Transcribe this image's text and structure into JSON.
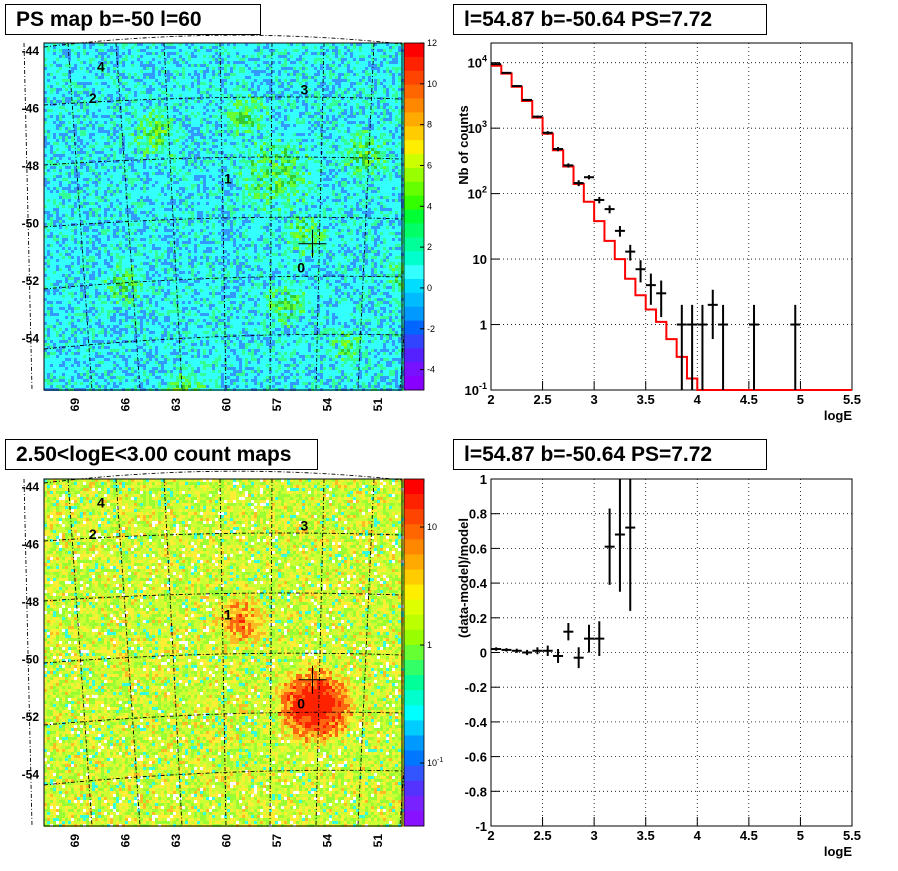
{
  "chart_data": [
    {
      "type": "heatmap",
      "title": "PS map b=-50 l=60",
      "x_ticks": [
        "69",
        "66",
        "63",
        "60",
        "57",
        "54",
        "51"
      ],
      "y_ticks": [
        "-44",
        "-46",
        "-48",
        "-50",
        "-52",
        "-54"
      ],
      "xlim": [
        48.5,
        70.5
      ],
      "ylim": [
        -55.5,
        -43.4
      ],
      "colorbar_ticks": [
        "12",
        "10",
        "8",
        "6",
        "4",
        "2",
        "0",
        "-2",
        "-4"
      ],
      "colorbar_range": [
        -5,
        12
      ],
      "sources": [
        {
          "label": "0",
          "l": 54.7,
          "b": -51.4
        },
        {
          "label": "1",
          "l": 59.2,
          "b": -48.3
        },
        {
          "label": "2",
          "l": 67.5,
          "b": -45.5
        },
        {
          "label": "3",
          "l": 54.5,
          "b": -45.2
        },
        {
          "label": "4",
          "l": 67.0,
          "b": -44.4
        }
      ],
      "marker": {
        "l": 54.0,
        "b": -50.4
      },
      "colors": {
        "background": "#33ffff",
        "hot": "#66cc33"
      }
    },
    {
      "type": "line",
      "title": "l=54.87 b=-50.64 PS=7.72",
      "xlabel": "logE",
      "ylabel": "Nb of counts",
      "y_scale": "log",
      "xlim": [
        2,
        5.5
      ],
      "ylim": [
        0.1,
        20000
      ],
      "x_ticks": [
        "2",
        "2.5",
        "3",
        "3.5",
        "4",
        "4.5",
        "5",
        "5.5"
      ],
      "y_ticks": [
        {
          "value": 0.1,
          "base": "10",
          "exp": "-1"
        },
        {
          "value": 1,
          "label": "1"
        },
        {
          "value": 10,
          "label": "10"
        },
        {
          "value": 100,
          "base": "10",
          "exp": "2"
        },
        {
          "value": 1000,
          "base": "10",
          "exp": "3"
        },
        {
          "value": 10000,
          "base": "10",
          "exp": "4"
        }
      ],
      "grid": true,
      "series": [
        {
          "style": "model-step",
          "color": "#ff0000",
          "bin_edges": [
            2.0,
            2.1,
            2.2,
            2.3,
            2.4,
            2.5,
            2.6,
            2.7,
            2.8,
            2.9,
            3.0,
            3.1,
            3.2,
            3.3,
            3.4,
            3.5,
            3.6,
            3.7,
            3.8,
            3.9,
            4.0,
            4.1,
            4.2,
            4.3,
            4.4,
            4.5,
            4.6,
            4.7,
            4.8,
            4.9,
            5.0,
            5.1,
            5.2,
            5.3,
            5.4,
            5.5
          ],
          "values": [
            9000,
            6800,
            4300,
            2600,
            1450,
            820,
            460,
            260,
            140,
            75,
            38,
            19,
            10,
            5,
            2.8,
            1.7,
            1.1,
            0.6,
            0.32,
            0.15,
            0.1,
            0.1,
            0.1,
            0.1,
            0.1,
            0.1,
            0.1,
            0.1,
            0.1,
            0.1,
            0.1,
            0.1,
            0.1,
            0.1,
            0.1
          ]
        },
        {
          "style": "data-points",
          "color": "#000000",
          "points": [
            {
              "x": 2.05,
              "y": 9500,
              "lo": 9300,
              "hi": 9700
            },
            {
              "x": 2.15,
              "y": 7000,
              "lo": 6850,
              "hi": 7150
            },
            {
              "x": 2.25,
              "y": 4400,
              "lo": 4300,
              "hi": 4500
            },
            {
              "x": 2.35,
              "y": 2700,
              "lo": 2620,
              "hi": 2780
            },
            {
              "x": 2.45,
              "y": 1500,
              "lo": 1440,
              "hi": 1560
            },
            {
              "x": 2.55,
              "y": 850,
              "lo": 800,
              "hi": 900
            },
            {
              "x": 2.65,
              "y": 480,
              "lo": 445,
              "hi": 515
            },
            {
              "x": 2.75,
              "y": 270,
              "lo": 250,
              "hi": 290
            },
            {
              "x": 2.85,
              "y": 145,
              "lo": 130,
              "hi": 160
            },
            {
              "x": 2.95,
              "y": 178,
              "lo": 165,
              "hi": 192
            },
            {
              "x": 3.05,
              "y": 80,
              "lo": 71,
              "hi": 89
            },
            {
              "x": 3.15,
              "y": 58,
              "lo": 50,
              "hi": 66
            },
            {
              "x": 3.25,
              "y": 27,
              "lo": 22,
              "hi": 32
            },
            {
              "x": 3.35,
              "y": 13,
              "lo": 9.5,
              "hi": 16.5
            },
            {
              "x": 3.45,
              "y": 7,
              "lo": 4.4,
              "hi": 9.6
            },
            {
              "x": 3.55,
              "y": 4,
              "lo": 2,
              "hi": 6
            },
            {
              "x": 3.65,
              "y": 3,
              "lo": 1.3,
              "hi": 4.7
            },
            {
              "x": 3.85,
              "y": 1,
              "lo": 0.1,
              "hi": 2
            },
            {
              "x": 3.95,
              "y": 1,
              "lo": 0.1,
              "hi": 2
            },
            {
              "x": 4.05,
              "y": 1,
              "lo": 0.1,
              "hi": 2
            },
            {
              "x": 4.15,
              "y": 2,
              "lo": 0.6,
              "hi": 3.4
            },
            {
              "x": 4.25,
              "y": 1,
              "lo": 0.1,
              "hi": 2
            },
            {
              "x": 4.55,
              "y": 1,
              "lo": 0.1,
              "hi": 2
            },
            {
              "x": 4.95,
              "y": 1,
              "lo": 0.1,
              "hi": 2
            }
          ]
        }
      ]
    },
    {
      "type": "heatmap",
      "title": "2.50<logE<3.00 count maps",
      "x_ticks": [
        "69",
        "66",
        "63",
        "60",
        "57",
        "54",
        "51"
      ],
      "y_ticks": [
        "-44",
        "-46",
        "-48",
        "-50",
        "-52",
        "-54"
      ],
      "colorbar_ticks": [
        {
          "base": "10",
          "label": "10"
        },
        {
          "label": "1"
        },
        {
          "base": "10",
          "exp": "-1"
        }
      ],
      "colorbar_scale": "log",
      "sources": [
        {
          "label": "0",
          "l": 54.7,
          "b": -51.4
        },
        {
          "label": "1",
          "l": 59.2,
          "b": -48.3
        },
        {
          "label": "2",
          "l": 67.5,
          "b": -45.5
        },
        {
          "label": "3",
          "l": 54.5,
          "b": -45.2
        },
        {
          "label": "4",
          "l": 67.0,
          "b": -44.4
        }
      ],
      "marker": {
        "l": 54.0,
        "b": -50.4
      },
      "colors": {
        "background": "#bbee33",
        "hot": "#ff5500"
      }
    },
    {
      "type": "scatter",
      "title": "l=54.87 b=-50.64 PS=7.72",
      "xlabel": "logE",
      "ylabel": "(data-model)/model",
      "xlim": [
        2,
        5.5
      ],
      "ylim": [
        -1,
        1
      ],
      "x_ticks": [
        "2",
        "2.5",
        "3",
        "3.5",
        "4",
        "4.5",
        "5",
        "5.5"
      ],
      "y_ticks": [
        "-1",
        "-0.8",
        "-0.6",
        "-0.4",
        "-0.2",
        "0",
        "0.2",
        "0.4",
        "0.6",
        "0.8",
        "1"
      ],
      "grid": true,
      "points": [
        {
          "x": 2.05,
          "y": 0.02,
          "err": 0.01
        },
        {
          "x": 2.15,
          "y": 0.015,
          "err": 0.01
        },
        {
          "x": 2.25,
          "y": 0.01,
          "err": 0.012
        },
        {
          "x": 2.35,
          "y": 0.0,
          "err": 0.015
        },
        {
          "x": 2.45,
          "y": 0.01,
          "err": 0.02
        },
        {
          "x": 2.55,
          "y": 0.01,
          "err": 0.03
        },
        {
          "x": 2.65,
          "y": -0.02,
          "err": 0.04
        },
        {
          "x": 2.75,
          "y": 0.12,
          "err": 0.05
        },
        {
          "x": 2.85,
          "y": -0.03,
          "err": 0.06
        },
        {
          "x": 2.95,
          "y": 0.08,
          "err": 0.08
        },
        {
          "x": 3.05,
          "y": 0.08,
          "err": 0.1
        },
        {
          "x": 3.15,
          "y": 0.61,
          "err": 0.22
        },
        {
          "x": 3.25,
          "y": 0.68,
          "err": 0.33
        },
        {
          "x": 3.35,
          "y": 0.72,
          "err": 0.48
        }
      ]
    }
  ]
}
